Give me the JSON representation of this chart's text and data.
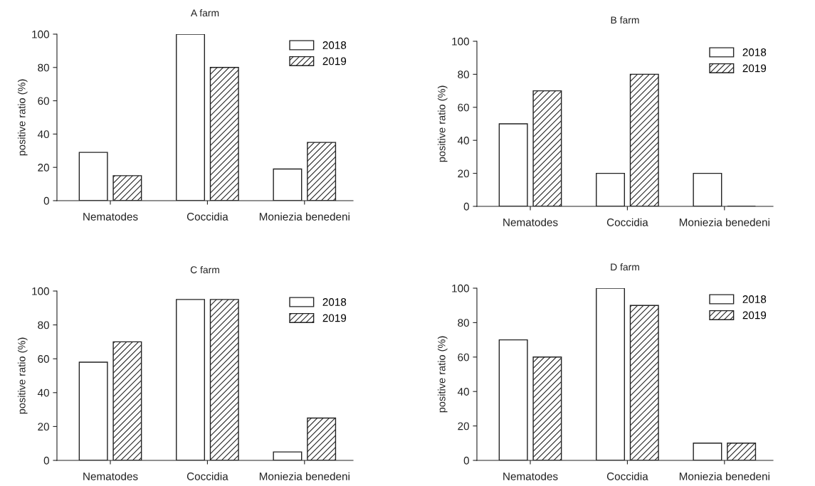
{
  "chart_data": [
    {
      "type": "bar",
      "title": "A farm",
      "ylabel": "positive ratio (%)",
      "categories": [
        "Nematodes",
        "Coccidia",
        "Moniezia benedeni"
      ],
      "ylim": [
        0,
        100
      ],
      "yticks": [
        0,
        20,
        40,
        60,
        80,
        100
      ],
      "grid": false,
      "legend": "top right",
      "series": [
        {
          "name": "2018",
          "color": "#ffffff",
          "values": [
            29,
            100,
            19
          ]
        },
        {
          "name": "2019",
          "color": "#222222",
          "values": [
            15,
            80,
            35
          ]
        }
      ]
    },
    {
      "type": "bar",
      "title": "B farm",
      "ylabel": "positive ratio (%)",
      "categories": [
        "Nematodes",
        "Coccidia",
        "Moniezia benedeni"
      ],
      "ylim": [
        0,
        100
      ],
      "yticks": [
        0,
        20,
        40,
        60,
        80,
        100
      ],
      "grid": false,
      "legend": "top right",
      "series": [
        {
          "name": "2018",
          "color": "#ffffff",
          "values": [
            50,
            20,
            20
          ]
        },
        {
          "name": "2019",
          "color": "#222222",
          "values": [
            70,
            80,
            0
          ]
        }
      ]
    },
    {
      "type": "bar",
      "title": "C farm",
      "ylabel": "positive ratio (%)",
      "categories": [
        "Nematodes",
        "Coccidia",
        "Moniezia benedeni"
      ],
      "ylim": [
        0,
        100
      ],
      "yticks": [
        0,
        20,
        40,
        60,
        80,
        100
      ],
      "grid": false,
      "legend": "top right",
      "series": [
        {
          "name": "2018",
          "color": "#ffffff",
          "values": [
            58,
            95,
            5
          ]
        },
        {
          "name": "2019",
          "color": "#222222",
          "values": [
            70,
            95,
            25
          ]
        }
      ]
    },
    {
      "type": "bar",
      "title": "D farm",
      "ylabel": "positive ratio (%)",
      "categories": [
        "Nematodes",
        "Coccidia",
        "Moniezia benedeni"
      ],
      "ylim": [
        0,
        100
      ],
      "yticks": [
        0,
        20,
        40,
        60,
        80,
        100
      ],
      "grid": false,
      "legend": "top right",
      "series": [
        {
          "name": "2018",
          "color": "#ffffff",
          "values": [
            70,
            100,
            10
          ]
        },
        {
          "name": "2019",
          "color": "#222222",
          "values": [
            60,
            90,
            10
          ]
        }
      ]
    }
  ]
}
